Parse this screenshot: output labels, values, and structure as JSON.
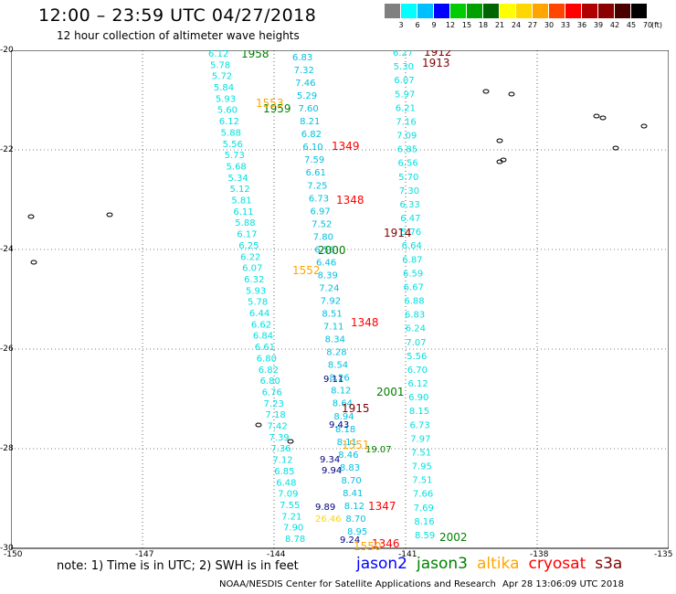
{
  "header": {
    "title": "12:00 – 23:59 UTC 04/27/2018",
    "subtitle": "12 hour collection of altimeter wave heights"
  },
  "colorbar": {
    "unit": "(ft)",
    "labels": [
      "3",
      "6",
      "9",
      "12",
      "15",
      "18",
      "21",
      "24",
      "27",
      "30",
      "33",
      "36",
      "39",
      "42",
      "45",
      "70"
    ],
    "colors": [
      "#808080",
      "#00ffff",
      "#00bfff",
      "#0000ff",
      "#00cc00",
      "#00a000",
      "#006400",
      "#ffff00",
      "#ffd700",
      "#ffa500",
      "#ff4500",
      "#ff0000",
      "#b00000",
      "#8b0000",
      "#4b0000",
      "#000000"
    ]
  },
  "map": {
    "lat_labels": [
      "-20",
      "-22",
      "-24",
      "-26",
      "-28",
      "-30"
    ],
    "lon_labels": [
      "-150",
      "-147",
      "-144",
      "-141",
      "-138",
      "-135"
    ],
    "track_labels": [
      {
        "text": "1958",
        "color": "#008000"
      },
      {
        "text": "1912",
        "color": "#800000"
      },
      {
        "text": "1913",
        "color": "#800000"
      },
      {
        "text": "1959",
        "color": "#008000"
      },
      {
        "text": "1553",
        "color": "#ffa500"
      },
      {
        "text": "1349",
        "color": "#ff0000"
      },
      {
        "text": "1348",
        "color": "#ff0000"
      },
      {
        "text": "1914",
        "color": "#800000"
      },
      {
        "text": "2000",
        "color": "#008000"
      },
      {
        "text": "1552",
        "color": "#ffa500"
      },
      {
        "text": "1348",
        "color": "#ff0000"
      },
      {
        "text": "2001",
        "color": "#008000"
      },
      {
        "text": "1915",
        "color": "#800000"
      },
      {
        "text": "1551",
        "color": "#ffa500"
      },
      {
        "text": "1347",
        "color": "#ff0000"
      },
      {
        "text": "2002",
        "color": "#008000"
      },
      {
        "text": "1346",
        "color": "#ff0000"
      },
      {
        "text": "1550",
        "color": "#ffa500"
      }
    ],
    "swh_values": [
      {
        "text": "6.12",
        "color": "#00e0e0"
      },
      {
        "text": "5.78",
        "color": "#00e0e0"
      },
      {
        "text": "5.72",
        "color": "#00e0e0"
      },
      {
        "text": "5.84",
        "color": "#00e0e0"
      },
      {
        "text": "5.93",
        "color": "#00e0e0"
      },
      {
        "text": "5.60",
        "color": "#00e0e0"
      },
      {
        "text": "6.12",
        "color": "#00e0e0"
      },
      {
        "text": "5.88",
        "color": "#00e0e0"
      },
      {
        "text": "5.56",
        "color": "#00e0e0"
      },
      {
        "text": "5.73",
        "color": "#00e0e0"
      },
      {
        "text": "5.68",
        "color": "#00e0e0"
      },
      {
        "text": "5.34",
        "color": "#00e0e0"
      },
      {
        "text": "5.12",
        "color": "#00e0e0"
      },
      {
        "text": "5.81",
        "color": "#00e0e0"
      },
      {
        "text": "6.11",
        "color": "#00e0e0"
      },
      {
        "text": "5.88",
        "color": "#00e0e0"
      },
      {
        "text": "6.17",
        "color": "#00e0e0"
      },
      {
        "text": "6.25",
        "color": "#00e0e0"
      },
      {
        "text": "6.22",
        "color": "#00e0e0"
      },
      {
        "text": "6.07",
        "color": "#00e0e0"
      },
      {
        "text": "6.32",
        "color": "#00e0e0"
      },
      {
        "text": "5.93",
        "color": "#00e0e0"
      },
      {
        "text": "5.78",
        "color": "#00e0e0"
      },
      {
        "text": "6.44",
        "color": "#00e0e0"
      },
      {
        "text": "6.62",
        "color": "#00e0e0"
      },
      {
        "text": "6.84",
        "color": "#00e0e0"
      },
      {
        "text": "6.61",
        "color": "#00e0e0"
      },
      {
        "text": "6.80",
        "color": "#00e0e0"
      },
      {
        "text": "6.82",
        "color": "#00e0e0"
      },
      {
        "text": "6.80",
        "color": "#00e0e0"
      },
      {
        "text": "6.76",
        "color": "#00e0e0"
      },
      {
        "text": "7.23",
        "color": "#00e0e0"
      },
      {
        "text": "7.18",
        "color": "#00e0e0"
      },
      {
        "text": "7.42",
        "color": "#00e0e0"
      },
      {
        "text": "7.39",
        "color": "#00e0e0"
      },
      {
        "text": "7.36",
        "color": "#00e0e0"
      },
      {
        "text": "7.12",
        "color": "#00e0e0"
      },
      {
        "text": "6.85",
        "color": "#00e0e0"
      },
      {
        "text": "6.48",
        "color": "#00e0e0"
      },
      {
        "text": "7.09",
        "color": "#00e0e0"
      },
      {
        "text": "7.55",
        "color": "#00e0e0"
      },
      {
        "text": "7.21",
        "color": "#00e0e0"
      },
      {
        "text": "7.90",
        "color": "#00e0e0"
      },
      {
        "text": "8.78",
        "color": "#00e0e0"
      },
      {
        "text": "6.83",
        "color": "#00c0e0"
      },
      {
        "text": "7.32",
        "color": "#00c0e0"
      },
      {
        "text": "7.46",
        "color": "#00c0e0"
      },
      {
        "text": "5.29",
        "color": "#00c0e0"
      },
      {
        "text": "7.60",
        "color": "#00c0e0"
      },
      {
        "text": "8.21",
        "color": "#00c0e0"
      },
      {
        "text": "6.82",
        "color": "#00c0e0"
      },
      {
        "text": "6.10",
        "color": "#00c0e0"
      },
      {
        "text": "7.59",
        "color": "#00c0e0"
      },
      {
        "text": "6.61",
        "color": "#00c0e0"
      },
      {
        "text": "7.25",
        "color": "#00c0e0"
      },
      {
        "text": "6.73",
        "color": "#00c0e0"
      },
      {
        "text": "6.97",
        "color": "#00c0e0"
      },
      {
        "text": "7.52",
        "color": "#00c0e0"
      },
      {
        "text": "7.80",
        "color": "#00c0e0"
      },
      {
        "text": "6.56",
        "color": "#00c0e0"
      },
      {
        "text": "6.46",
        "color": "#00c0e0"
      },
      {
        "text": "8.39",
        "color": "#00c0e0"
      },
      {
        "text": "7.24",
        "color": "#00c0e0"
      },
      {
        "text": "7.92",
        "color": "#00c0e0"
      },
      {
        "text": "8.51",
        "color": "#00c0e0"
      },
      {
        "text": "7.11",
        "color": "#00c0e0"
      },
      {
        "text": "8.34",
        "color": "#00c0e0"
      },
      {
        "text": "8.28",
        "color": "#00c0e0"
      },
      {
        "text": "8.54",
        "color": "#00c0e0"
      },
      {
        "text": "8.26",
        "color": "#00c0e0"
      },
      {
        "text": "8.12",
        "color": "#00c0e0"
      },
      {
        "text": "8.64",
        "color": "#00c0e0"
      },
      {
        "text": "8.94",
        "color": "#00c0e0"
      },
      {
        "text": "8.18",
        "color": "#00c0e0"
      },
      {
        "text": "8.11",
        "color": "#00c0e0"
      },
      {
        "text": "8.46",
        "color": "#00c0e0"
      },
      {
        "text": "8.83",
        "color": "#00c0e0"
      },
      {
        "text": "8.70",
        "color": "#00c0e0"
      },
      {
        "text": "8.41",
        "color": "#00c0e0"
      },
      {
        "text": "8.12",
        "color": "#00c0e0"
      },
      {
        "text": "8.70",
        "color": "#00c0e0"
      },
      {
        "text": "8.95",
        "color": "#00c0e0"
      },
      {
        "text": "6.27",
        "color": "#00e0e0"
      },
      {
        "text": "5.30",
        "color": "#00e0e0"
      },
      {
        "text": "6.07",
        "color": "#00e0e0"
      },
      {
        "text": "5.97",
        "color": "#00e0e0"
      },
      {
        "text": "6.21",
        "color": "#00e0e0"
      },
      {
        "text": "7.16",
        "color": "#00e0e0"
      },
      {
        "text": "7.09",
        "color": "#00e0e0"
      },
      {
        "text": "6.85",
        "color": "#00e0e0"
      },
      {
        "text": "6.56",
        "color": "#00e0e0"
      },
      {
        "text": "5.70",
        "color": "#00e0e0"
      },
      {
        "text": "7.30",
        "color": "#00e0e0"
      },
      {
        "text": "6.33",
        "color": "#00e0e0"
      },
      {
        "text": "6.47",
        "color": "#00e0e0"
      },
      {
        "text": "5.76",
        "color": "#00e0e0"
      },
      {
        "text": "6.64",
        "color": "#00e0e0"
      },
      {
        "text": "6.87",
        "color": "#00e0e0"
      },
      {
        "text": "6.59",
        "color": "#00e0e0"
      },
      {
        "text": "6.67",
        "color": "#00e0e0"
      },
      {
        "text": "6.88",
        "color": "#00e0e0"
      },
      {
        "text": "6.83",
        "color": "#00e0e0"
      },
      {
        "text": "6.24",
        "color": "#00e0e0"
      },
      {
        "text": "7.07",
        "color": "#00e0e0"
      },
      {
        "text": "5.56",
        "color": "#00e0e0"
      },
      {
        "text": "6.70",
        "color": "#00e0e0"
      },
      {
        "text": "6.12",
        "color": "#00e0e0"
      },
      {
        "text": "6.90",
        "color": "#00e0e0"
      },
      {
        "text": "8.15",
        "color": "#00e0e0"
      },
      {
        "text": "6.73",
        "color": "#00e0e0"
      },
      {
        "text": "7.97",
        "color": "#00e0e0"
      },
      {
        "text": "7.51",
        "color": "#00e0e0"
      },
      {
        "text": "7.95",
        "color": "#00e0e0"
      },
      {
        "text": "7.51",
        "color": "#00e0e0"
      },
      {
        "text": "7.66",
        "color": "#00e0e0"
      },
      {
        "text": "7.69",
        "color": "#00e0e0"
      },
      {
        "text": "8.16",
        "color": "#00e0e0"
      },
      {
        "text": "8.59",
        "color": "#00e0e0"
      },
      {
        "text": "9.11",
        "color": "#000080"
      },
      {
        "text": "9.43",
        "color": "#000080"
      },
      {
        "text": "9.34",
        "color": "#000080"
      },
      {
        "text": "9.94",
        "color": "#000080"
      },
      {
        "text": "9.89",
        "color": "#000080"
      },
      {
        "text": "9.24",
        "color": "#000080"
      },
      {
        "text": "19.07",
        "color": "#008000"
      },
      {
        "text": "26.46",
        "color": "#ffd700"
      }
    ]
  },
  "footer": {
    "note": "note: 1) Time is in UTC; 2) SWH is in feet",
    "legend": [
      {
        "name": "jason2",
        "color": "#0000ff"
      },
      {
        "name": "jason3",
        "color": "#008000"
      },
      {
        "name": "altika",
        "color": "#ffa500"
      },
      {
        "name": "cryosat",
        "color": "#ff0000"
      },
      {
        "name": "s3a",
        "color": "#800000"
      }
    ],
    "credit": "NOAA/NESDIS Center for Satellite Applications and Research",
    "timestamp": "Apr 28 13:06:09 UTC 2018"
  }
}
